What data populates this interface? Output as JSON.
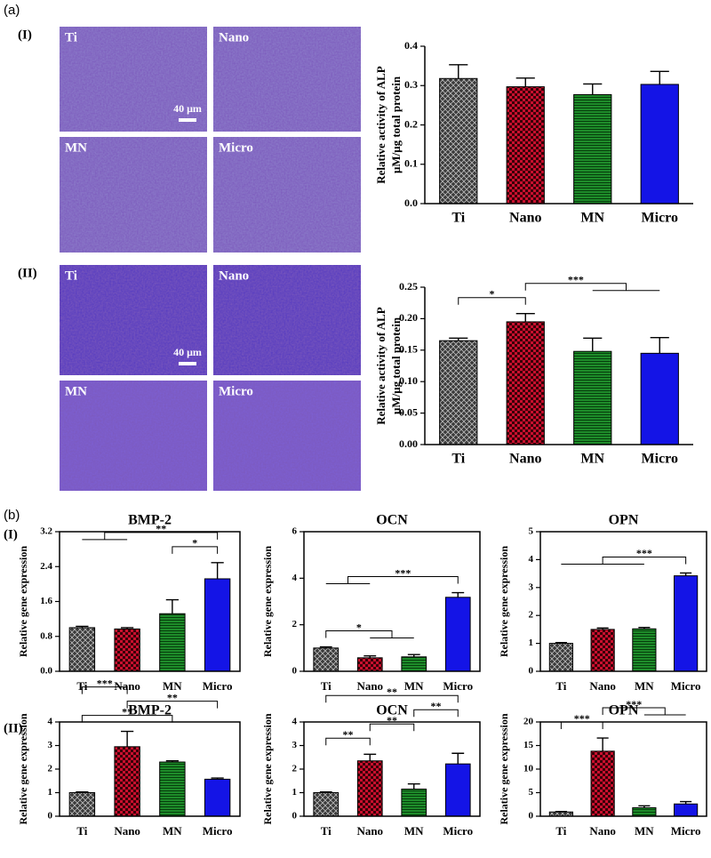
{
  "panels": [
    {
      "label": "(a)"
    },
    {
      "label": "(b)",
      "row_labels": [
        "(I)",
        "(II)"
      ]
    }
  ],
  "micrographs": [
    {
      "row_label": "(I)",
      "tiles": [
        "Ti",
        "Nano",
        "MN",
        "Micro"
      ],
      "scale_bar": "40 μm"
    },
    {
      "row_label": "(II)",
      "tiles": [
        "Ti",
        "Nano",
        "MN",
        "Micro"
      ],
      "scale_bar": "40 μm"
    }
  ],
  "chart_data": [
    {
      "type": "bar",
      "ylabel": [
        "Relative activity of ALP",
        "μM/μg total protein"
      ],
      "categories": [
        "Ti",
        "Nano",
        "MN",
        "Micro"
      ],
      "values": [
        0.318,
        0.297,
        0.277,
        0.303
      ],
      "errors": [
        0.035,
        0.022,
        0.027,
        0.033
      ],
      "colors": [
        "#3a3a3a",
        "#c8102e",
        "#1e8c2a",
        "#1414e6"
      ],
      "patterns": [
        "crosshatch",
        "checker",
        "horizontal",
        "solid"
      ],
      "ylim": [
        0,
        0.4
      ],
      "yticks": [
        {
          "value": 0,
          "label": "0.0"
        },
        0.1,
        0.2,
        0.3,
        0.4
      ],
      "annotations": []
    },
    {
      "type": "bar",
      "ylabel": [
        "Relative activity of ALP",
        "μM/μg total protein"
      ],
      "categories": [
        "Ti",
        "Nano",
        "MN",
        "Micro"
      ],
      "values": [
        0.165,
        0.195,
        0.148,
        0.145
      ],
      "errors": [
        0.004,
        0.013,
        0.021,
        0.025
      ],
      "colors": [
        "#3a3a3a",
        "#c8102e",
        "#1e8c2a",
        "#1414e6"
      ],
      "patterns": [
        "crosshatch",
        "checker",
        "horizontal",
        "solid"
      ],
      "ylim": [
        0,
        0.25
      ],
      "yticks": [
        {
          "value": 0,
          "label": "0.00"
        },
        0.05,
        {
          "value": 0.1,
          "label": "0.10"
        },
        0.15,
        {
          "value": 0.2,
          "label": "0.20"
        },
        0.25
      ],
      "annotations": [
        {
          "text": "*",
          "left": [
            "Ti"
          ],
          "right": [
            "Nano"
          ]
        },
        {
          "text": "***",
          "left": [
            "Nano"
          ],
          "right": [
            "MN",
            "Micro"
          ]
        }
      ]
    },
    {
      "type": "bar",
      "title": "BMP-2",
      "ylabel": "Relative gene expression",
      "categories": [
        "Ti",
        "Nano",
        "MN",
        "Micro"
      ],
      "values": [
        1.0,
        0.97,
        1.32,
        2.12
      ],
      "errors": [
        0.03,
        0.03,
        0.32,
        0.37
      ],
      "colors": [
        "#3a3a3a",
        "#c8102e",
        "#1e8c2a",
        "#1414e6"
      ],
      "patterns": [
        "crosshatch",
        "checker",
        "horizontal",
        "solid"
      ],
      "ylim": [
        0,
        3.2
      ],
      "yticks": [
        {
          "value": 0,
          "label": "0.0"
        },
        0.8,
        1.6,
        2.4,
        3.2
      ],
      "annotations": [
        {
          "text": "*",
          "left": [
            "MN"
          ],
          "right": [
            "Micro"
          ]
        },
        {
          "text": "**",
          "left": [
            "Ti",
            "Nano"
          ],
          "right": [
            "Micro"
          ]
        }
      ]
    },
    {
      "type": "bar",
      "title": "OCN",
      "ylabel": "Relative gene expression",
      "categories": [
        "Ti",
        "Nano",
        "MN",
        "Micro"
      ],
      "values": [
        1.0,
        0.58,
        0.62,
        3.18
      ],
      "errors": [
        0.05,
        0.08,
        0.1,
        0.2
      ],
      "colors": [
        "#3a3a3a",
        "#c8102e",
        "#1e8c2a",
        "#1414e6"
      ],
      "patterns": [
        "crosshatch",
        "checker",
        "horizontal",
        "solid"
      ],
      "ylim": [
        0,
        6
      ],
      "yticks": [
        0,
        2,
        4,
        6
      ],
      "annotations": [
        {
          "text": "*",
          "left": [
            "Ti"
          ],
          "right": [
            "Nano",
            "MN"
          ]
        },
        {
          "text": "***",
          "left": [
            "Ti",
            "Nano"
          ],
          "right": [
            "Micro"
          ]
        }
      ]
    },
    {
      "type": "bar",
      "title": "OPN",
      "ylabel": "Relative gene expression",
      "categories": [
        "Ti",
        "Nano",
        "MN",
        "Micro"
      ],
      "values": [
        1.0,
        1.5,
        1.52,
        3.42
      ],
      "errors": [
        0.03,
        0.05,
        0.05,
        0.1
      ],
      "colors": [
        "#3a3a3a",
        "#c8102e",
        "#1e8c2a",
        "#1414e6"
      ],
      "patterns": [
        "crosshatch",
        "checker",
        "horizontal",
        "solid"
      ],
      "ylim": [
        0,
        5
      ],
      "yticks": [
        0,
        1,
        2,
        3,
        4,
        5
      ],
      "annotations": [
        {
          "text": "***",
          "left": [
            "Ti",
            "Nano",
            "MN"
          ],
          "right": [
            "Micro"
          ]
        }
      ]
    },
    {
      "type": "bar",
      "title": "BMP-2",
      "ylabel": "Relative gene expression",
      "categories": [
        "Ti",
        "Nano",
        "MN",
        "Micro"
      ],
      "values": [
        1.0,
        2.95,
        2.3,
        1.57
      ],
      "errors": [
        0.03,
        0.65,
        0.05,
        0.05
      ],
      "colors": [
        "#3a3a3a",
        "#c8102e",
        "#1e8c2a",
        "#1414e6"
      ],
      "patterns": [
        "crosshatch",
        "checker",
        "horizontal",
        "solid"
      ],
      "ylim": [
        0,
        4
      ],
      "yticks": [
        0,
        1,
        2,
        3,
        4
      ],
      "annotations": [
        {
          "text": "**",
          "left": [
            "Ti"
          ],
          "right": [
            "MN"
          ]
        },
        {
          "text": "**",
          "left": [
            "Nano"
          ],
          "right": [
            "Micro"
          ]
        },
        {
          "text": "***",
          "left": [
            "Ti"
          ],
          "right": [
            "Nano"
          ]
        }
      ]
    },
    {
      "type": "bar",
      "title": "OCN",
      "ylabel": "Relative gene expression",
      "categories": [
        "Ti",
        "Nano",
        "MN",
        "Micro"
      ],
      "values": [
        1.0,
        2.35,
        1.15,
        2.22
      ],
      "errors": [
        0.03,
        0.28,
        0.22,
        0.45
      ],
      "colors": [
        "#3a3a3a",
        "#c8102e",
        "#1e8c2a",
        "#1414e6"
      ],
      "patterns": [
        "crosshatch",
        "checker",
        "horizontal",
        "solid"
      ],
      "ylim": [
        0,
        4
      ],
      "yticks": [
        0,
        1,
        2,
        3,
        4
      ],
      "annotations": [
        {
          "text": "**",
          "left": [
            "Ti"
          ],
          "right": [
            "Nano"
          ]
        },
        {
          "text": "**",
          "left": [
            "Nano"
          ],
          "right": [
            "MN"
          ]
        },
        {
          "text": "**",
          "left": [
            "MN"
          ],
          "right": [
            "Micro"
          ]
        },
        {
          "text": "**",
          "left": [
            "Ti"
          ],
          "right": [
            "Micro"
          ]
        }
      ]
    },
    {
      "type": "bar",
      "title": "OPN",
      "ylabel": "Relative gene expression",
      "categories": [
        "Ti",
        "Nano",
        "MN",
        "Micro"
      ],
      "values": [
        0.9,
        13.8,
        1.8,
        2.6
      ],
      "errors": [
        0.1,
        2.8,
        0.4,
        0.5
      ],
      "colors": [
        "#3a3a3a",
        "#c8102e",
        "#1e8c2a",
        "#1414e6"
      ],
      "patterns": [
        "crosshatch",
        "checker",
        "horizontal",
        "solid"
      ],
      "ylim": [
        0,
        20
      ],
      "yticks": [
        0,
        5,
        10,
        15,
        20
      ],
      "annotations": [
        {
          "text": "***",
          "left": [
            "Ti"
          ],
          "right": [
            "Nano"
          ]
        },
        {
          "text": "***",
          "left": [
            "Nano"
          ],
          "right": [
            "MN",
            "Micro"
          ]
        }
      ]
    }
  ]
}
